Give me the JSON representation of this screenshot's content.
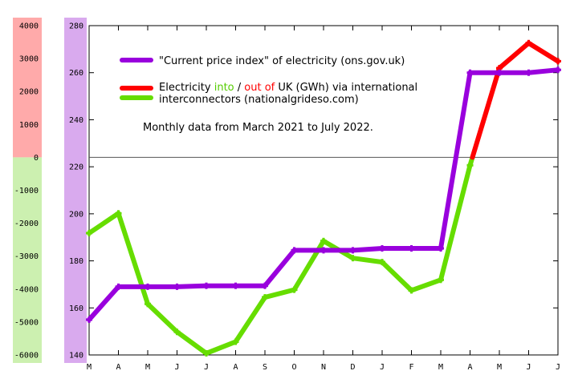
{
  "chart_data": {
    "type": "line",
    "categories": [
      "M",
      "A",
      "M",
      "J",
      "J",
      "A",
      "S",
      "O",
      "N",
      "D",
      "J",
      "F",
      "M",
      "A",
      "M",
      "J",
      "J"
    ],
    "y_left_secondary": {
      "range": [
        -6000,
        4000
      ],
      "ticks": [
        "4000",
        "3000",
        "2000",
        "1000",
        "0",
        "-1000",
        "-2000",
        "-3000",
        "-4000",
        "-5000",
        "-6000"
      ],
      "colors": {
        "positive": "#ffaaaa",
        "negative": "#ccf0b0"
      }
    },
    "y_right_primary": {
      "range": [
        140,
        280
      ],
      "ticks": [
        "280",
        "260",
        "240",
        "220",
        "200",
        "180",
        "160",
        "140"
      ],
      "band_color": "#d9aaee"
    },
    "series": [
      {
        "name": "\"Current price index\" of electricity (ons.gov.uk)",
        "axis": "primary",
        "color": "#9900dd",
        "values": [
          155,
          169,
          169,
          169,
          169.4,
          169.4,
          169.4,
          184.5,
          184.5,
          184.5,
          185.3,
          185.3,
          185.3,
          260,
          260,
          260,
          261.2
        ]
      },
      {
        "name": "Electricity into / out of UK (GWh) via international interconnectors (nationalgrideso.com)",
        "axis": "secondary",
        "colors": {
          "into": "#66dd00",
          "out": "#ff0000"
        },
        "values": [
          -2300,
          -1700,
          -4450,
          -5300,
          -5950,
          -5600,
          -4250,
          -4020,
          -2540,
          -3060,
          -3180,
          -4040,
          -3720,
          -240,
          2710,
          3470,
          2920
        ]
      }
    ],
    "legend": {
      "price_label": "\"Current price index\" of electricity (ons.gov.uk)",
      "flow_prefix": "Electricity ",
      "flow_into": "into",
      "flow_sep": " / ",
      "flow_out": "out of",
      "flow_suffix": " UK (GWh) via international",
      "flow_line2": "interconnectors (nationalgrideso.com)",
      "placement": "top-left"
    },
    "note": "Monthly data from March 2021 to July 2022.",
    "grid": false
  }
}
